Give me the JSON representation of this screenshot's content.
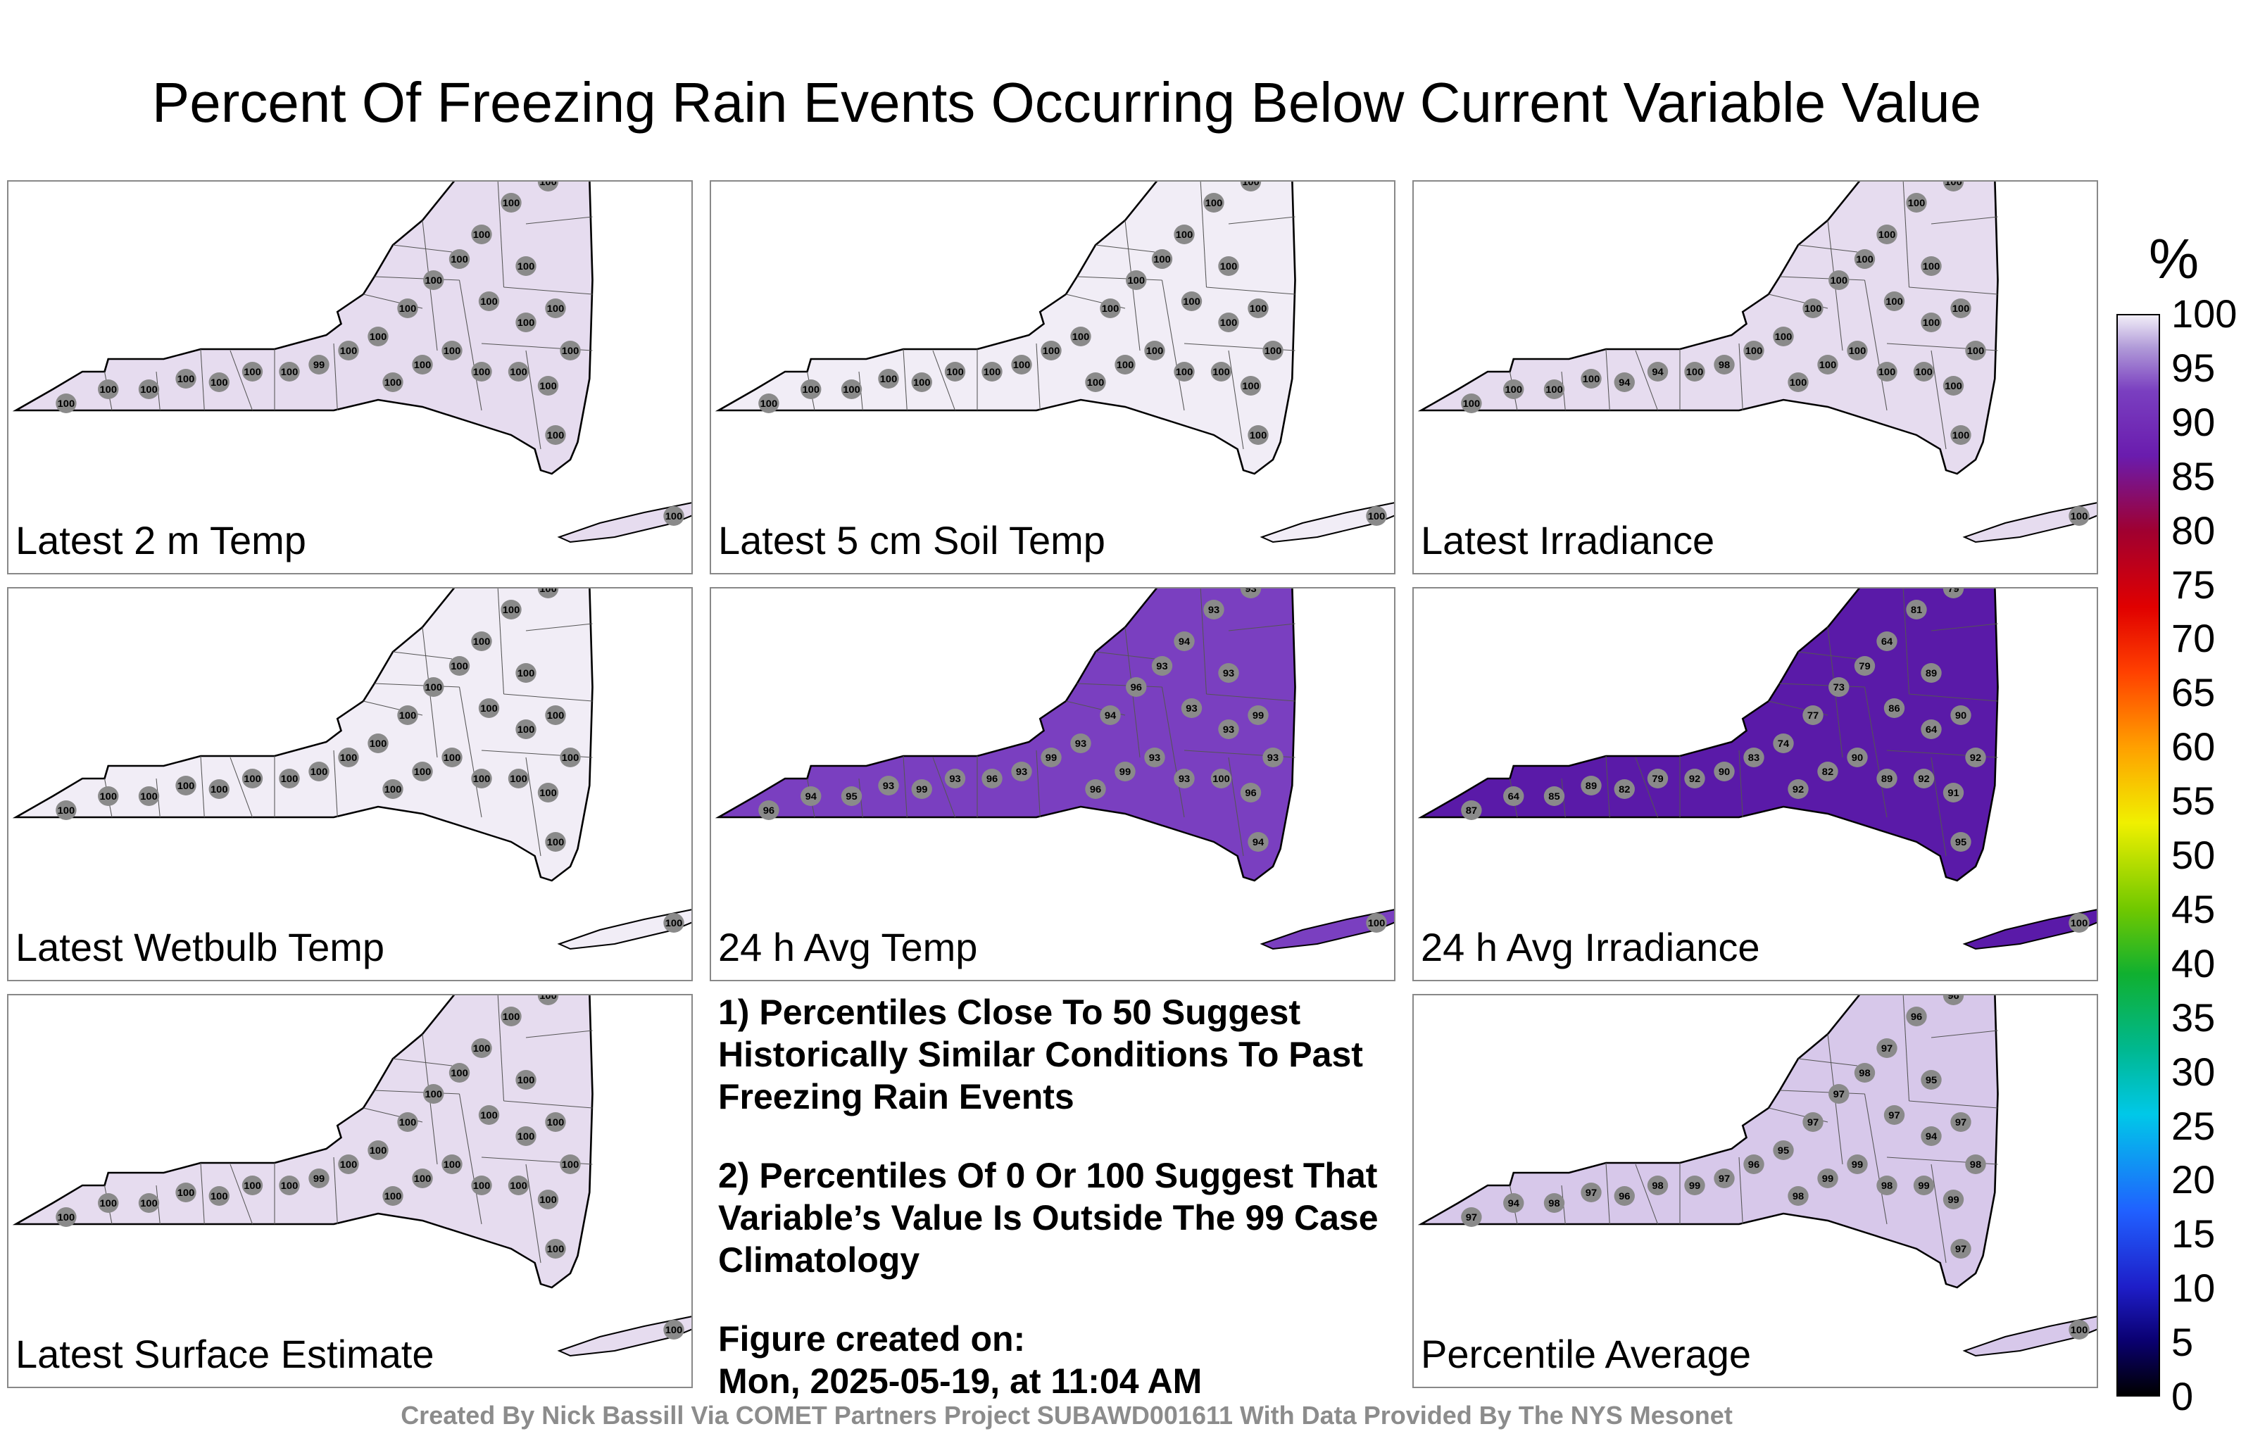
{
  "title": "Percent Of Freezing Rain Events Occurring Below Current Variable Value",
  "panels": [
    {
      "label": "Latest 2 m Temp",
      "fill": "#e6dcef",
      "values": [
        100,
        100,
        100,
        100,
        100,
        100,
        100,
        99,
        100,
        100,
        100,
        100,
        100,
        100,
        100,
        100,
        100,
        100,
        100,
        100,
        100,
        100,
        100,
        100,
        100,
        100,
        100,
        100,
        100,
        100
      ]
    },
    {
      "label": "Latest 5 cm Soil Temp",
      "fill": "#f1edf6",
      "values": [
        100,
        100,
        100,
        100,
        100,
        100,
        100,
        100,
        100,
        100,
        100,
        100,
        100,
        100,
        100,
        100,
        100,
        100,
        100,
        100,
        100,
        100,
        100,
        100,
        100,
        100,
        100,
        100,
        100,
        100
      ]
    },
    {
      "label": "Latest Irradiance",
      "fill": "#e6dcef",
      "values": [
        100,
        100,
        100,
        100,
        94,
        94,
        100,
        98,
        100,
        100,
        100,
        100,
        100,
        100,
        100,
        100,
        100,
        100,
        100,
        100,
        100,
        100,
        100,
        100,
        100,
        100,
        100,
        100,
        100,
        100
      ]
    },
    {
      "label": "Latest Wetbulb Temp",
      "fill": "#f1edf6",
      "values": [
        100,
        100,
        100,
        100,
        100,
        100,
        100,
        100,
        100,
        100,
        100,
        100,
        100,
        100,
        100,
        100,
        100,
        100,
        100,
        100,
        100,
        100,
        100,
        100,
        100,
        100,
        100,
        100,
        100,
        100
      ]
    },
    {
      "label": "24 h Avg Temp",
      "fill": "#7a3fc0",
      "values": [
        96,
        94,
        95,
        93,
        99,
        93,
        96,
        93,
        99,
        93,
        94,
        96,
        93,
        94,
        93,
        93,
        93,
        93,
        93,
        93,
        99,
        93,
        96,
        100,
        93,
        93,
        99,
        96,
        94,
        100
      ]
    },
    {
      "label": "24 h Avg Irradiance",
      "fill": "#5a1aa8",
      "values": [
        87,
        64,
        85,
        89,
        82,
        79,
        92,
        90,
        83,
        74,
        77,
        73,
        79,
        64,
        81,
        79,
        71,
        89,
        86,
        64,
        90,
        92,
        91,
        92,
        89,
        90,
        82,
        92,
        95,
        100
      ]
    },
    {
      "label": "Latest Surface Estimate",
      "fill": "#e6dcef",
      "values": [
        100,
        100,
        100,
        100,
        100,
        100,
        100,
        99,
        100,
        100,
        100,
        100,
        100,
        100,
        100,
        100,
        100,
        100,
        100,
        100,
        100,
        100,
        100,
        100,
        100,
        100,
        100,
        100,
        100,
        100
      ]
    },
    {
      "label": "Percentile Average",
      "fill": "#d7c8ea",
      "values": [
        97,
        94,
        98,
        97,
        96,
        98,
        99,
        97,
        96,
        95,
        97,
        97,
        98,
        97,
        96,
        96,
        97,
        95,
        97,
        94,
        97,
        98,
        99,
        99,
        98,
        99,
        99,
        98,
        97,
        100
      ]
    }
  ],
  "notes": {
    "n1": "1) Percentiles Close To 50 Suggest Historically Similar Conditions To Past Freezing Rain Events",
    "n2": "2) Percentiles Of 0 Or 100 Suggest That Variable’s Value Is Outside The 99 Case Climatology",
    "created_label": "Figure created on:",
    "created_value": "Mon, 2025-05-19, at 11:04 AM"
  },
  "colorbar": {
    "unit": "%",
    "ticks": [
      "100",
      "95",
      "90",
      "85",
      "80",
      "75",
      "70",
      "65",
      "60",
      "55",
      "50",
      "45",
      "40",
      "35",
      "30",
      "25",
      "20",
      "15",
      "10",
      "5",
      "0"
    ]
  },
  "footer": "Created By Nick Bassill Via COMET Partners Project SUBAWD001611 With Data Provided By The NYS Mesonet"
}
